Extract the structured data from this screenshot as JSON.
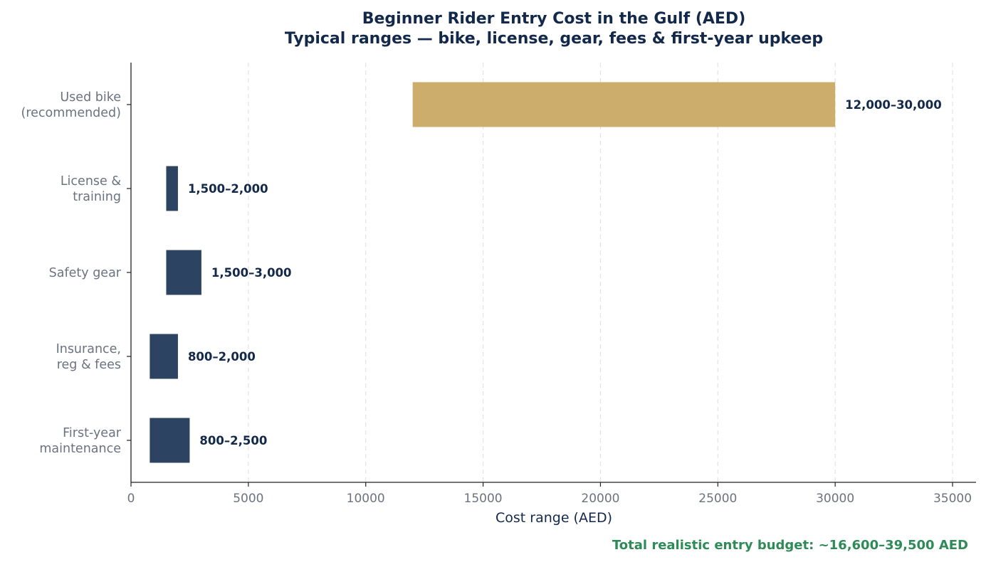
{
  "chart_data": {
    "type": "bar",
    "orientation": "horizontal",
    "style": "floating-range",
    "title": "Beginner Rider Entry Cost in the Gulf (AED)",
    "subtitle": "Typical ranges — bike, license, gear, fees & first-year upkeep",
    "xlabel": "Cost range (AED)",
    "ylabel": "",
    "xlim": [
      0,
      36000
    ],
    "xticks": [
      "0",
      "5000",
      "10000",
      "15000",
      "20000",
      "25000",
      "30000",
      "35000"
    ],
    "grid": "vertical dashed",
    "categories": [
      {
        "lines": [
          "Used bike",
          "(recommended)"
        ],
        "min": 12000,
        "max": 30000,
        "label": "12,000–30,000",
        "color": "#cdad6c"
      },
      {
        "lines": [
          "License &",
          "training"
        ],
        "min": 1500,
        "max": 2000,
        "label": "1,500–2,000",
        "color": "#2c4462"
      },
      {
        "lines": [
          "Safety gear"
        ],
        "min": 1500,
        "max": 3000,
        "label": "1,500–3,000",
        "color": "#2c4462"
      },
      {
        "lines": [
          "Insurance,",
          "reg & fees"
        ],
        "min": 800,
        "max": 2000,
        "label": "800–2,000",
        "color": "#2c4462"
      },
      {
        "lines": [
          "First-year",
          "maintenance"
        ],
        "min": 800,
        "max": 2500,
        "label": "800–2,500",
        "color": "#2c4462"
      }
    ],
    "footnote": "Total realistic entry budget: ~16,600–39,500 AED"
  }
}
